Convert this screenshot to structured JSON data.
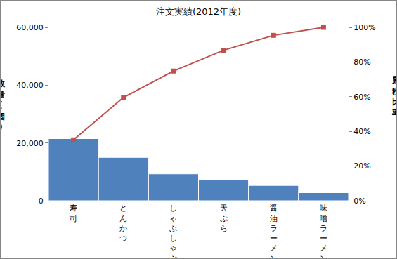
{
  "chart_data": {
    "type": "bar",
    "title": "注文実績(2012年度)",
    "y_label": "数量(個)",
    "y2_label": "累積比率",
    "categories": [
      "寿司",
      "とんかつ",
      "しゃぶしゃぶ",
      "天ぷら",
      "醤油ラーメン",
      "味噌ラーメン"
    ],
    "series": [
      {
        "type": "bar",
        "color": "#4f81bd",
        "values": [
          21500,
          15000,
          9300,
          7300,
          5300,
          2800
        ]
      },
      {
        "type": "line",
        "axis": "y2",
        "color": "#c0504d",
        "marker": "square",
        "line_style": "solid",
        "values": [
          35.1,
          59.6,
          74.8,
          86.8,
          95.4,
          100
        ]
      }
    ],
    "ylim": [
      0,
      60000
    ],
    "yticks": [
      0,
      {
        "value": 20000,
        "label": "20,000"
      },
      {
        "value": 40000,
        "label": "40,000"
      },
      {
        "value": 60000,
        "label": "60,000"
      }
    ],
    "y2lim": [
      0,
      100
    ],
    "y2ticks": [
      {
        "value": 0,
        "label": "0%"
      },
      {
        "value": 20,
        "label": "20%"
      },
      {
        "value": 40,
        "label": "40%"
      },
      {
        "value": 60,
        "label": "60%"
      },
      {
        "value": 80,
        "label": "80%"
      },
      {
        "value": 100,
        "label": "100%"
      }
    ],
    "grid": false
  }
}
